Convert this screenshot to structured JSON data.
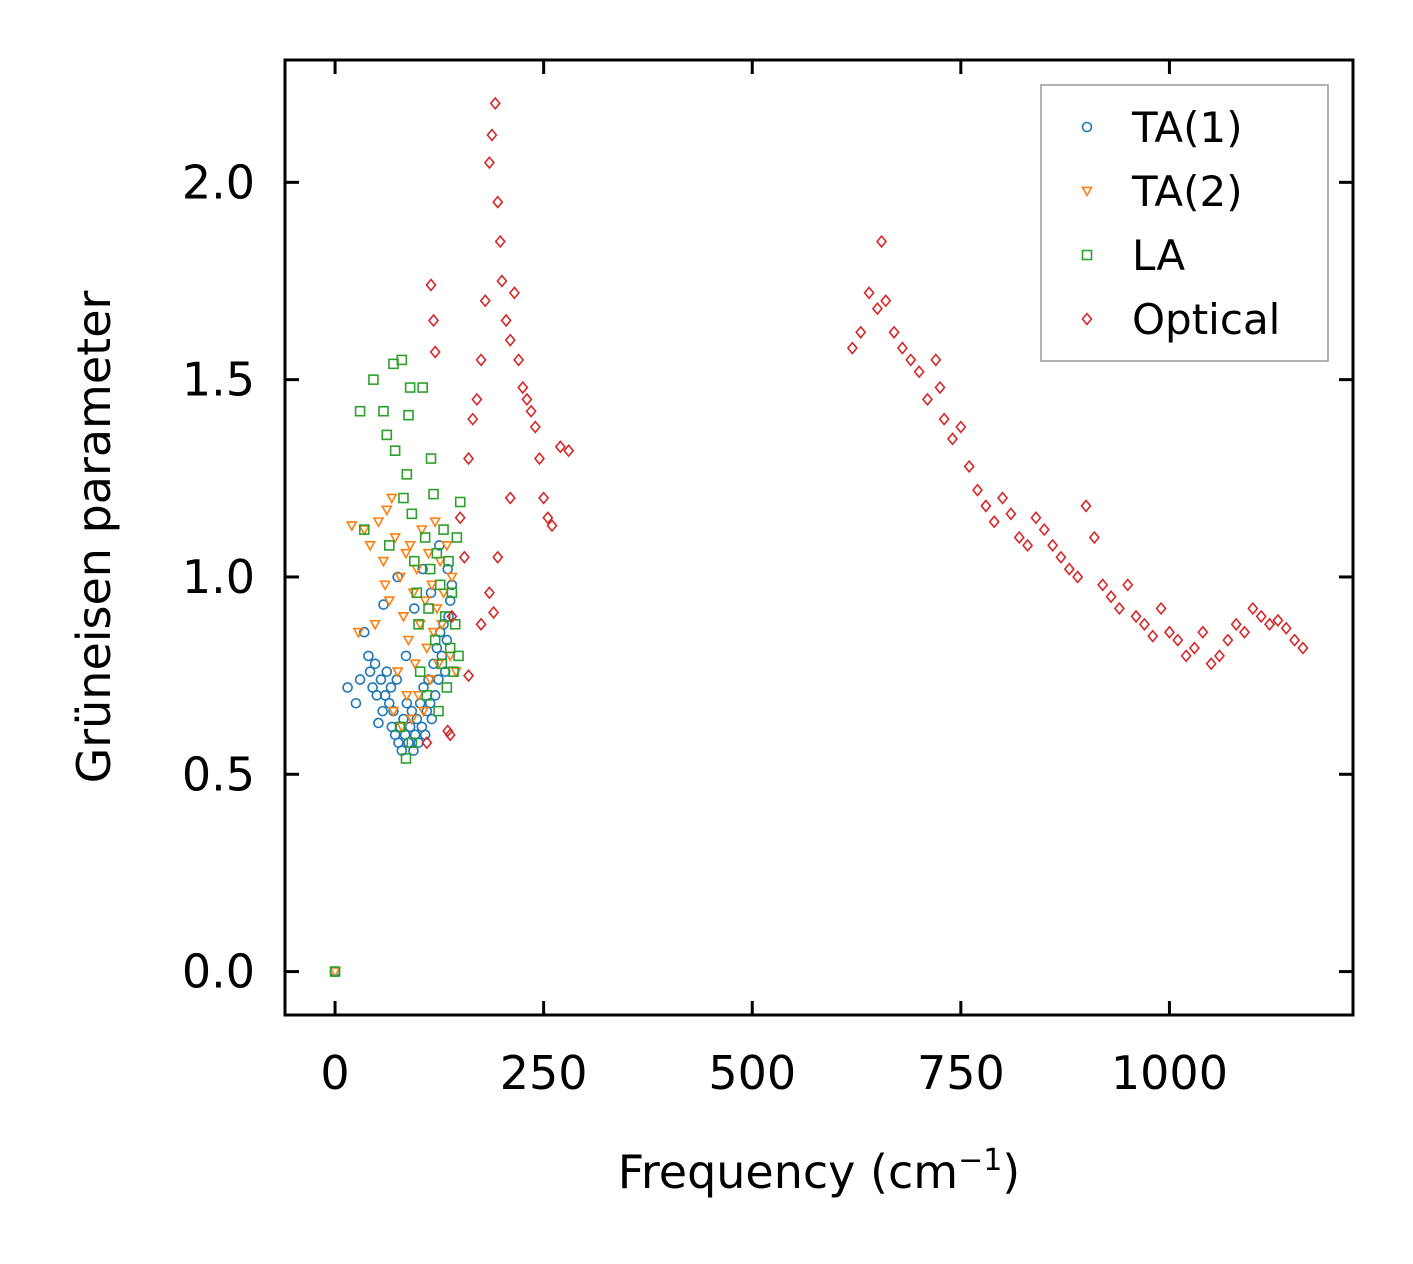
{
  "chart_data": {
    "type": "scatter",
    "title": "",
    "xlabel": "Frequency (cm",
    "xlabel_superscript": "−1",
    "xlabel_suffix": ")",
    "ylabel": "Grüneisen parameter",
    "xlim": [
      -60,
      1220
    ],
    "ylim": [
      -0.11,
      2.31
    ],
    "xticks": [
      0,
      250,
      500,
      750,
      1000
    ],
    "xtick_labels": [
      "0",
      "250",
      "500",
      "750",
      "1000"
    ],
    "yticks": [
      0.0,
      0.5,
      1.0,
      1.5,
      2.0
    ],
    "ytick_labels": [
      "0.0",
      "0.5",
      "1.0",
      "1.5",
      "2.0"
    ],
    "grid": false,
    "legend_position": "top-right",
    "series": [
      {
        "name": "TA(1)",
        "marker": "circle",
        "color": "#1f77b4",
        "points": [
          [
            0,
            0.0
          ],
          [
            15,
            0.72
          ],
          [
            25,
            0.68
          ],
          [
            30,
            0.74
          ],
          [
            35,
            0.86
          ],
          [
            40,
            0.8
          ],
          [
            42,
            0.76
          ],
          [
            45,
            0.72
          ],
          [
            48,
            0.78
          ],
          [
            50,
            0.7
          ],
          [
            52,
            0.63
          ],
          [
            55,
            0.74
          ],
          [
            57,
            0.66
          ],
          [
            58,
            0.93
          ],
          [
            60,
            0.7
          ],
          [
            62,
            0.76
          ],
          [
            65,
            0.68
          ],
          [
            67,
            0.72
          ],
          [
            68,
            0.62
          ],
          [
            70,
            0.66
          ],
          [
            72,
            0.6
          ],
          [
            74,
            0.74
          ],
          [
            75,
            1.0
          ],
          [
            76,
            0.58
          ],
          [
            78,
            0.62
          ],
          [
            80,
            0.56
          ],
          [
            82,
            0.64
          ],
          [
            84,
            0.6
          ],
          [
            85,
            0.8
          ],
          [
            86,
            0.68
          ],
          [
            88,
            0.58
          ],
          [
            90,
            0.62
          ],
          [
            92,
            0.66
          ],
          [
            94,
            0.56
          ],
          [
            95,
            0.92
          ],
          [
            96,
            0.6
          ],
          [
            98,
            0.64
          ],
          [
            100,
            0.58
          ],
          [
            102,
            0.68
          ],
          [
            104,
            0.62
          ],
          [
            105,
            1.02
          ],
          [
            106,
            0.72
          ],
          [
            108,
            0.6
          ],
          [
            110,
            0.66
          ],
          [
            112,
            0.74
          ],
          [
            114,
            0.68
          ],
          [
            115,
            0.96
          ],
          [
            116,
            0.64
          ],
          [
            118,
            0.78
          ],
          [
            120,
            0.7
          ],
          [
            122,
            0.82
          ],
          [
            124,
            0.74
          ],
          [
            125,
            1.08
          ],
          [
            126,
            0.86
          ],
          [
            128,
            0.8
          ],
          [
            130,
            0.88
          ],
          [
            132,
            0.76
          ],
          [
            134,
            0.84
          ],
          [
            135,
            1.02
          ],
          [
            136,
            0.9
          ],
          [
            138,
            0.94
          ],
          [
            140,
            0.98
          ]
        ]
      },
      {
        "name": "TA(2)",
        "marker": "triangle-down",
        "color": "#ff7f0e",
        "points": [
          [
            0,
            0.0
          ],
          [
            20,
            1.13
          ],
          [
            28,
            0.86
          ],
          [
            35,
            1.12
          ],
          [
            42,
            1.08
          ],
          [
            48,
            0.88
          ],
          [
            52,
            1.14
          ],
          [
            58,
            1.04
          ],
          [
            60,
            0.98
          ],
          [
            62,
            1.17
          ],
          [
            65,
            0.94
          ],
          [
            68,
            1.2
          ],
          [
            70,
            0.66
          ],
          [
            72,
            1.1
          ],
          [
            75,
            0.76
          ],
          [
            78,
            1.0
          ],
          [
            80,
            0.62
          ],
          [
            82,
            0.9
          ],
          [
            85,
            1.06
          ],
          [
            86,
            0.7
          ],
          [
            88,
            0.84
          ],
          [
            90,
            1.08
          ],
          [
            92,
            0.64
          ],
          [
            94,
            0.96
          ],
          [
            96,
            0.78
          ],
          [
            98,
            1.02
          ],
          [
            100,
            0.7
          ],
          [
            102,
            0.88
          ],
          [
            104,
            1.12
          ],
          [
            106,
            0.66
          ],
          [
            108,
            0.94
          ],
          [
            110,
            0.82
          ],
          [
            112,
            1.06
          ],
          [
            114,
            0.74
          ],
          [
            116,
            0.98
          ],
          [
            118,
            0.86
          ],
          [
            120,
            1.14
          ],
          [
            122,
            0.92
          ],
          [
            124,
            0.78
          ],
          [
            126,
            1.04
          ],
          [
            128,
            0.88
          ],
          [
            130,
            0.96
          ],
          [
            134,
            1.08
          ],
          [
            138,
            0.8
          ],
          [
            140,
            1.0
          ],
          [
            145,
            0.76
          ]
        ]
      },
      {
        "name": "LA",
        "marker": "square",
        "color": "#2ca02c",
        "points": [
          [
            0,
            0.0
          ],
          [
            30,
            1.42
          ],
          [
            35,
            1.12
          ],
          [
            46,
            1.5
          ],
          [
            58,
            1.42
          ],
          [
            62,
            1.36
          ],
          [
            65,
            1.08
          ],
          [
            70,
            1.54
          ],
          [
            72,
            1.32
          ],
          [
            80,
            1.55
          ],
          [
            82,
            1.2
          ],
          [
            86,
            1.26
          ],
          [
            88,
            1.41
          ],
          [
            90,
            1.48
          ],
          [
            92,
            1.16
          ],
          [
            95,
            1.04
          ],
          [
            98,
            0.96
          ],
          [
            100,
            0.88
          ],
          [
            102,
            0.76
          ],
          [
            105,
            1.48
          ],
          [
            108,
            1.1
          ],
          [
            110,
            0.7
          ],
          [
            112,
            0.92
          ],
          [
            114,
            1.02
          ],
          [
            115,
            1.3
          ],
          [
            118,
            1.21
          ],
          [
            120,
            0.84
          ],
          [
            122,
            1.06
          ],
          [
            124,
            0.66
          ],
          [
            126,
            0.98
          ],
          [
            128,
            0.78
          ],
          [
            130,
            1.12
          ],
          [
            132,
            0.9
          ],
          [
            134,
            0.72
          ],
          [
            136,
            1.04
          ],
          [
            138,
            0.82
          ],
          [
            140,
            0.96
          ],
          [
            142,
            0.76
          ],
          [
            144,
            0.88
          ],
          [
            146,
            1.1
          ],
          [
            148,
            0.8
          ],
          [
            150,
            1.19
          ],
          [
            85,
            0.54
          ],
          [
            78,
            0.62
          ],
          [
            92,
            0.58
          ]
        ]
      },
      {
        "name": "Optical",
        "marker": "diamond",
        "color": "#d62728",
        "points": [
          [
            110,
            0.58
          ],
          [
            115,
            1.74
          ],
          [
            118,
            1.65
          ],
          [
            120,
            1.57
          ],
          [
            135,
            0.61
          ],
          [
            138,
            0.6
          ],
          [
            140,
            0.9
          ],
          [
            150,
            1.15
          ],
          [
            155,
            1.05
          ],
          [
            160,
            1.3
          ],
          [
            165,
            1.4
          ],
          [
            170,
            1.45
          ],
          [
            175,
            1.55
          ],
          [
            180,
            1.7
          ],
          [
            185,
            2.05
          ],
          [
            188,
            2.12
          ],
          [
            192,
            2.2
          ],
          [
            195,
            1.95
          ],
          [
            198,
            1.85
          ],
          [
            200,
            1.75
          ],
          [
            205,
            1.65
          ],
          [
            210,
            1.6
          ],
          [
            215,
            1.72
          ],
          [
            220,
            1.55
          ],
          [
            225,
            1.48
          ],
          [
            230,
            1.45
          ],
          [
            235,
            1.42
          ],
          [
            240,
            1.38
          ],
          [
            245,
            1.3
          ],
          [
            250,
            1.2
          ],
          [
            255,
            1.15
          ],
          [
            260,
            1.13
          ],
          [
            270,
            1.33
          ],
          [
            280,
            1.32
          ],
          [
            190,
            0.91
          ],
          [
            185,
            0.96
          ],
          [
            160,
            0.75
          ],
          [
            175,
            0.88
          ],
          [
            195,
            1.05
          ],
          [
            210,
            1.2
          ],
          [
            655,
            1.85
          ],
          [
            620,
            1.58
          ],
          [
            630,
            1.62
          ],
          [
            640,
            1.72
          ],
          [
            650,
            1.68
          ],
          [
            660,
            1.7
          ],
          [
            670,
            1.62
          ],
          [
            680,
            1.58
          ],
          [
            690,
            1.55
          ],
          [
            700,
            1.52
          ],
          [
            710,
            1.45
          ],
          [
            720,
            1.55
          ],
          [
            725,
            1.48
          ],
          [
            730,
            1.4
          ],
          [
            740,
            1.35
          ],
          [
            750,
            1.38
          ],
          [
            760,
            1.28
          ],
          [
            770,
            1.22
          ],
          [
            780,
            1.18
          ],
          [
            790,
            1.14
          ],
          [
            800,
            1.2
          ],
          [
            810,
            1.16
          ],
          [
            820,
            1.1
          ],
          [
            830,
            1.08
          ],
          [
            840,
            1.15
          ],
          [
            850,
            1.12
          ],
          [
            860,
            1.08
          ],
          [
            870,
            1.05
          ],
          [
            880,
            1.02
          ],
          [
            890,
            1.0
          ],
          [
            900,
            1.18
          ],
          [
            910,
            1.1
          ],
          [
            920,
            0.98
          ],
          [
            930,
            0.95
          ],
          [
            940,
            0.92
          ],
          [
            950,
            0.98
          ],
          [
            960,
            0.9
          ],
          [
            970,
            0.88
          ],
          [
            980,
            0.85
          ],
          [
            990,
            0.92
          ],
          [
            1000,
            0.86
          ],
          [
            1010,
            0.84
          ],
          [
            1020,
            0.8
          ],
          [
            1030,
            0.82
          ],
          [
            1040,
            0.86
          ],
          [
            1050,
            0.78
          ],
          [
            1060,
            0.8
          ],
          [
            1070,
            0.84
          ],
          [
            1080,
            0.88
          ],
          [
            1090,
            0.86
          ],
          [
            1100,
            0.92
          ],
          [
            1110,
            0.9
          ],
          [
            1120,
            0.88
          ],
          [
            1130,
            0.89
          ],
          [
            1140,
            0.87
          ],
          [
            1150,
            0.84
          ],
          [
            1160,
            0.82
          ]
        ]
      }
    ]
  }
}
